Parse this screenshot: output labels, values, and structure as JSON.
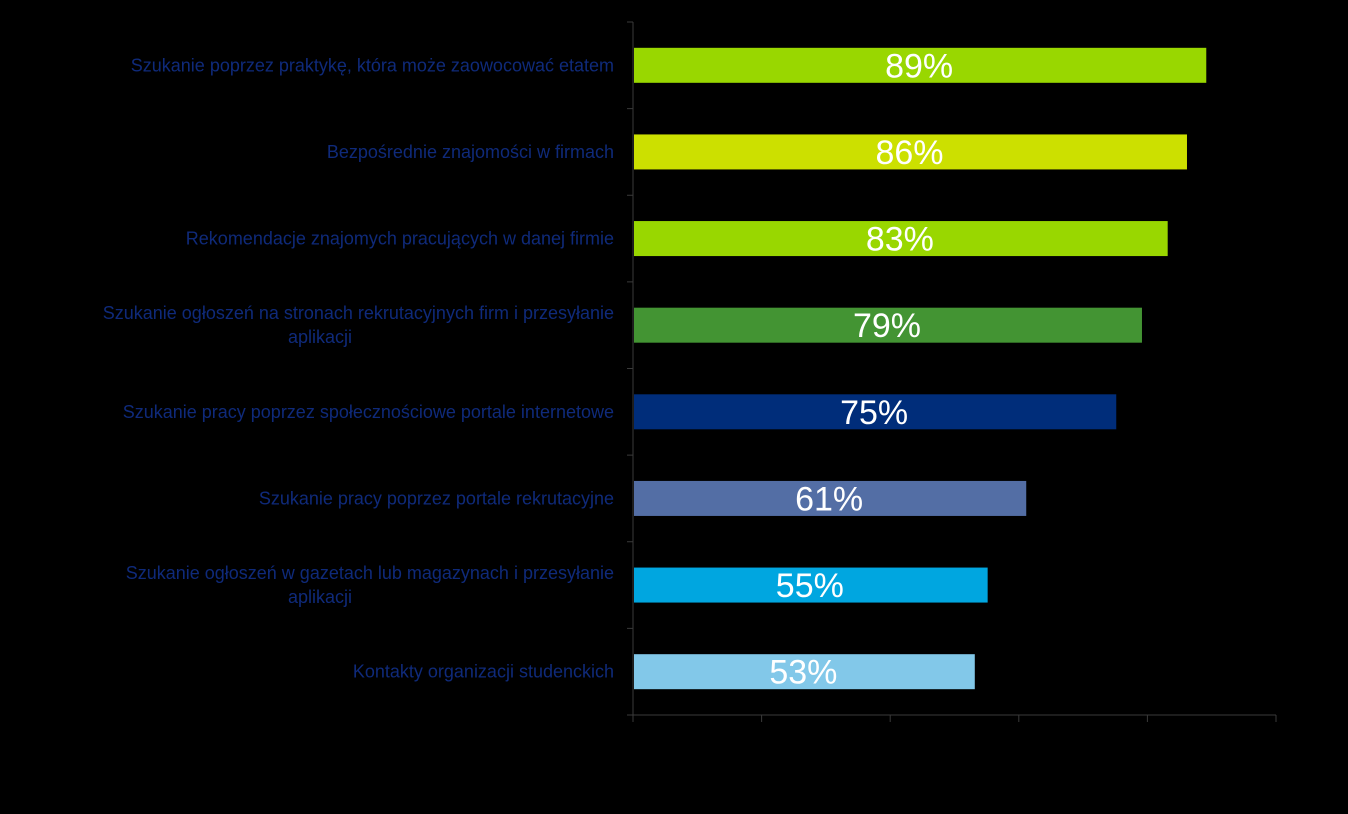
{
  "chart_data": {
    "type": "bar",
    "orientation": "horizontal",
    "title": "",
    "xlabel": "",
    "ylabel": "",
    "xlim": [
      0,
      100
    ],
    "grid": false,
    "legend": "none",
    "categories": [
      [
        "Szukanie poprzez praktykę, która może zaowocować etatem"
      ],
      [
        "Bezpośrednie znajomości w firmach"
      ],
      [
        "Rekomendacje znajomych pracujących w danej firmie"
      ],
      [
        "Szukanie ogłoszeń na stronach rekrutacyjnych firm i przesyłanie",
        "aplikacji"
      ],
      [
        "Szukanie pracy poprzez społecznościowe portale internetowe"
      ],
      [
        "Szukanie pracy poprzez portale rekrutacyjne"
      ],
      [
        "Szukanie ogłoszeń w gazetach lub magazynach i przesyłanie",
        "aplikacji"
      ],
      [
        "Kontakty organizacji studenckich"
      ]
    ],
    "values": [
      89,
      86,
      83,
      79,
      75,
      61,
      55,
      53
    ],
    "value_labels": [
      "89%",
      "86%",
      "83%",
      "79%",
      "75%",
      "61%",
      "55%",
      "53%"
    ],
    "bar_colors": [
      "#99d700",
      "#cce000",
      "#99d700",
      "#439433",
      "#002d7a",
      "#536ea5",
      "#00a6e0",
      "#82c8e9"
    ],
    "colors": {
      "background": "#000000",
      "category_text": "#0f2a7a",
      "value_text": "#ffffff",
      "axis": "#3a3a3a"
    }
  }
}
